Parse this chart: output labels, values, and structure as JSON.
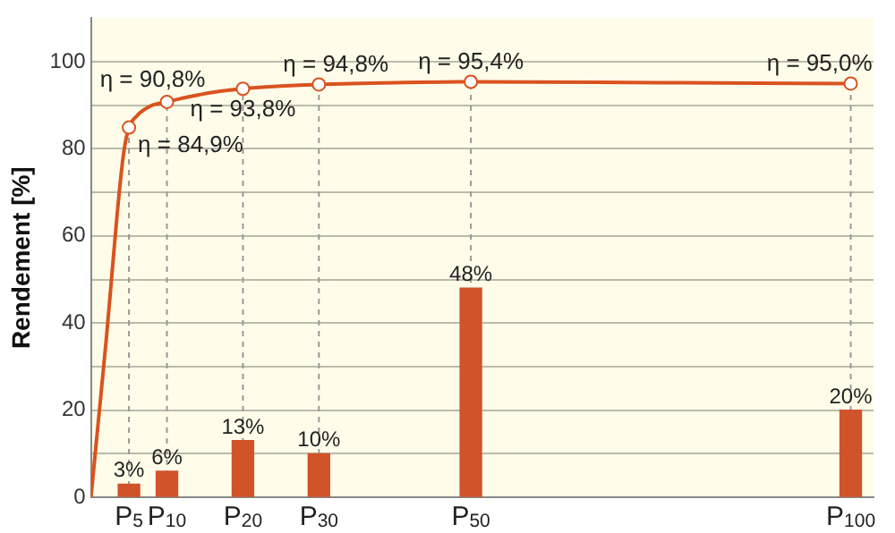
{
  "chart_data": {
    "type": "bar",
    "ylabel": "Rendement [%]",
    "xlim": [
      0,
      103
    ],
    "ylim": [
      0,
      110
    ],
    "xticks": [
      {
        "value": 5,
        "label": "P$_{5}$"
      },
      {
        "value": 10,
        "label": "P$_{10}$"
      },
      {
        "value": 20,
        "label": "P$_{20}$"
      },
      {
        "value": 30,
        "label": "P$_{30}$"
      },
      {
        "value": 50,
        "label": "P$_{50}$"
      },
      {
        "value": 100,
        "label": "P$_{100}$"
      }
    ],
    "yticks": [
      0,
      {
        "value": 10,
        "label": null
      },
      20,
      {
        "value": 30,
        "label": null
      },
      40,
      {
        "value": 50,
        "label": null
      },
      60,
      {
        "value": 70,
        "label": null
      },
      80,
      {
        "value": 90,
        "label": null
      },
      100
    ],
    "grid": "y",
    "legend": false,
    "series": [
      {
        "color": "#d0532a",
        "x": [
          5,
          10,
          20,
          30,
          50,
          100
        ],
        "values": [
          3,
          6,
          13,
          10,
          48,
          20
        ],
        "value_labels": [
          "3%",
          "6%",
          "13%",
          "10%",
          "48%",
          "20%"
        ]
      },
      {
        "type": "line",
        "color": "#d9531e",
        "marker": "none",
        "x": [
          0,
          1,
          2,
          2.7,
          3.5,
          4.3,
          5,
          6,
          7,
          8,
          10,
          13,
          16,
          20,
          25,
          30,
          40,
          50,
          75,
          100
        ],
        "values": [
          0,
          18,
          36,
          50,
          66,
          79,
          84.9,
          87.5,
          89,
          90,
          90.8,
          92,
          93,
          93.8,
          94.4,
          94.8,
          95.2,
          95.4,
          95.2,
          95.0
        ]
      },
      {
        "type": "scatter",
        "color": "#d9531e",
        "marker": "circle",
        "x": [
          5,
          10,
          20,
          30,
          50,
          100
        ],
        "values": [
          84.9,
          90.8,
          93.8,
          94.8,
          95.4,
          95.0
        ]
      }
    ],
    "ref_lines": [
      {
        "axis": "x",
        "value": 5,
        "color": "#999999",
        "line_style": "dashed"
      },
      {
        "axis": "x",
        "value": 10,
        "color": "#999999",
        "line_style": "dashed"
      },
      {
        "axis": "x",
        "value": 20,
        "color": "#999999",
        "line_style": "dashed"
      },
      {
        "axis": "x",
        "value": 30,
        "color": "#999999",
        "line_style": "dashed"
      },
      {
        "axis": "x",
        "value": 50,
        "color": "#999999",
        "line_style": "dashed"
      },
      {
        "axis": "x",
        "value": 100,
        "color": "#999999",
        "line_style": "dashed"
      }
    ],
    "annotations": [
      {
        "text": "η = 84,9%",
        "x": 5,
        "y": 84.9
      },
      {
        "text": "η = 90,8%",
        "x": 10,
        "y": 90.8
      },
      {
        "text": "η = 93,8%",
        "x": 20,
        "y": 93.8
      },
      {
        "text": "η = 94,8%",
        "x": 30,
        "y": 94.8
      },
      {
        "text": "η = 95,4%",
        "x": 50,
        "y": 95.4
      },
      {
        "text": "η = 95,0%",
        "x": 100,
        "y": 95.0
      }
    ]
  }
}
